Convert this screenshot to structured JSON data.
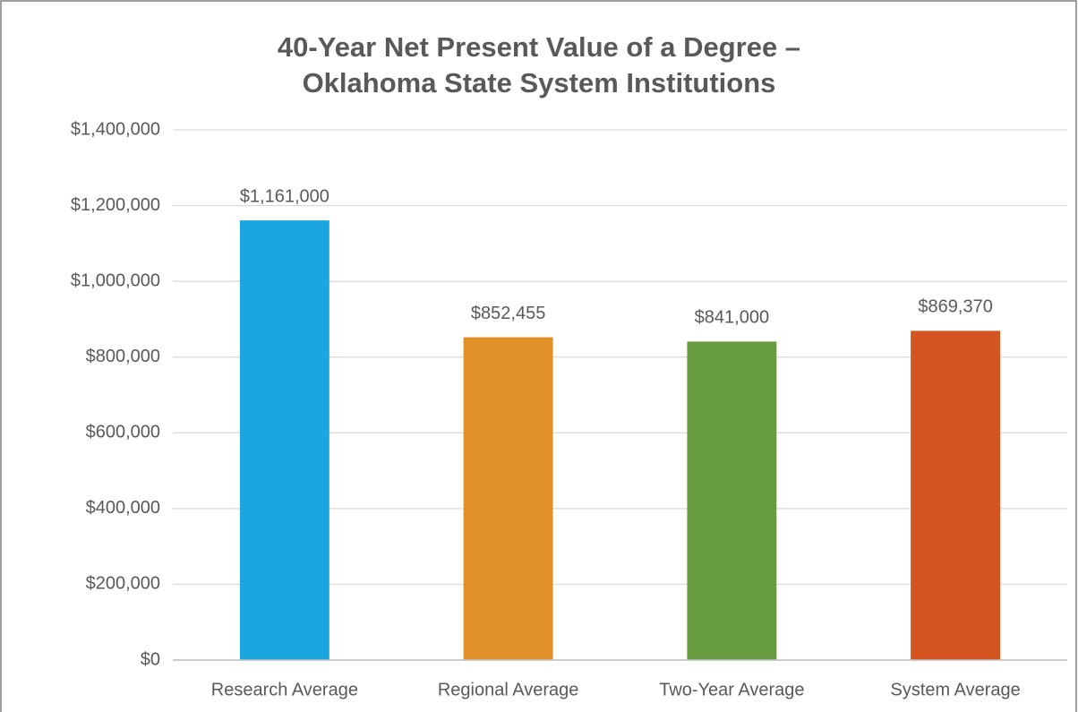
{
  "chart_data": {
    "type": "bar",
    "title": [
      "40-Year Net Present Value of a Degree –",
      "Oklahoma State System Institutions"
    ],
    "categories": [
      "Research Average",
      "Regional Average",
      "Two-Year Average",
      "System Average"
    ],
    "values": [
      1161000,
      852455,
      841000,
      869370
    ],
    "value_labels": [
      "$1,161,000",
      "$852,455",
      "$841,000",
      "$869,370"
    ],
    "colors": [
      "#1ca6e0",
      "#e09028",
      "#679c40",
      "#d35420"
    ],
    "ylim": [
      0,
      1400000
    ],
    "yticks": [
      {
        "value": 0,
        "label": "$0"
      },
      {
        "value": 200000,
        "label": "$200,000"
      },
      {
        "value": 400000,
        "label": "$400,000"
      },
      {
        "value": 600000,
        "label": "$600,000"
      },
      {
        "value": 800000,
        "label": "$800,000"
      },
      {
        "value": 1000000,
        "label": "$1,000,000"
      },
      {
        "value": 1200000,
        "label": "$1,200,000"
      },
      {
        "value": 1400000,
        "label": "$1,400,000"
      }
    ],
    "grid": true
  }
}
